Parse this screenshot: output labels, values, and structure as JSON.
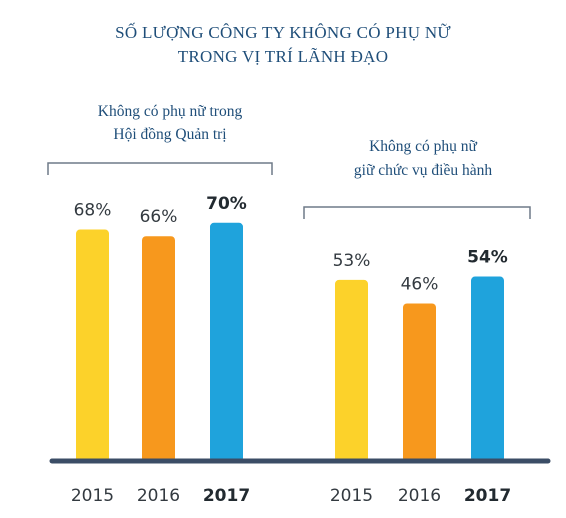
{
  "chart_data": {
    "type": "bar",
    "title": [
      "SỐ LƯỢNG CÔNG TY KHÔNG CÓ PHỤ NỮ",
      "TRONG VỊ TRÍ LÃNH ĐẠO"
    ],
    "ylim": [
      0,
      100
    ],
    "groups": [
      {
        "label": [
          "Không có phụ nữ trong",
          "Hội đồng Quản trị"
        ],
        "categories": [
          "2015",
          "2016",
          "2017"
        ],
        "values": [
          68,
          66,
          70
        ],
        "value_labels": [
          "68%",
          "66%",
          "70%"
        ],
        "bold_category": "2017"
      },
      {
        "label": [
          "Không có phụ nữ",
          "giữ chức vụ điều hành"
        ],
        "categories": [
          "2015",
          "2016",
          "2017"
        ],
        "values": [
          53,
          46,
          54
        ],
        "value_labels": [
          "53%",
          "46%",
          "54%"
        ],
        "bold_category": "2017"
      }
    ],
    "colors": [
      "#fcd22a",
      "#f7981d",
      "#1fa3dc"
    ],
    "text_color": "#1f4e79",
    "baseline_color": "#3b4d66"
  }
}
